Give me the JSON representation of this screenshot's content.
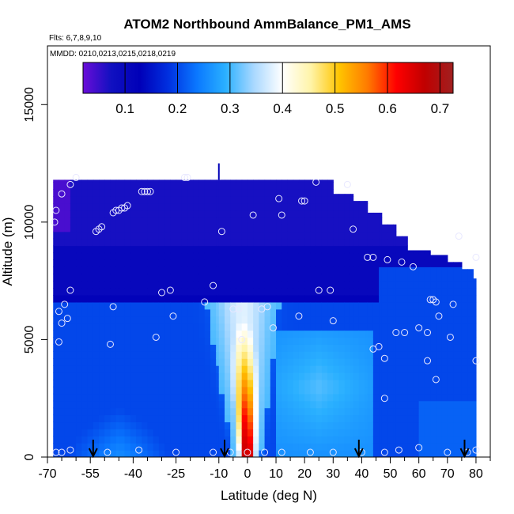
{
  "chart_data": {
    "type": "heatmap",
    "title": "ATOM2 Northbound AmmBalance_PM1_AMS",
    "subtitle": "Flts: 6,7,8,9,10",
    "annotation": "MMDD: 0210,0213,0215,0218,0219",
    "xlabel": "Latitude (deg N)",
    "ylabel": "Altitude (m)",
    "xlim": [
      -70,
      85
    ],
    "ylim": [
      0,
      17500
    ],
    "x_ticks": [
      -70,
      -55,
      -40,
      -25,
      -10,
      0,
      10,
      20,
      30,
      40,
      50,
      60,
      70,
      80
    ],
    "x_minor_ticks": [
      -65,
      -60,
      -50,
      -45,
      -35,
      -30,
      -20,
      -15,
      -5,
      5,
      15,
      25,
      35,
      45,
      55,
      65,
      75,
      85
    ],
    "y_ticks": [
      0,
      5000,
      10000,
      15000
    ],
    "colorbar": {
      "min": 0.02,
      "max": 0.725,
      "ticks": [
        0.1,
        0.2,
        0.3,
        0.4,
        0.5,
        0.6,
        0.7
      ],
      "colors": [
        "#6a0dd8",
        "#1010c0",
        "#0000b8",
        "#0030e0",
        "#0a78ff",
        "#2ab0ff",
        "#a9d8ff",
        "#ffffff",
        "#fff4a8",
        "#ffc400",
        "#ff7a00",
        "#ff0000",
        "#c00000",
        "#a02020"
      ]
    },
    "field_segments": [
      {
        "x": [
          -68,
          -52
        ],
        "top": 11800
      },
      {
        "x": [
          -52,
          -45
        ],
        "top": 11800
      },
      {
        "x": [
          -45,
          -10
        ],
        "top": 11800
      },
      {
        "x": [
          -10,
          30
        ],
        "top": 11800
      },
      {
        "x": [
          30,
          37
        ],
        "top": 11200
      },
      {
        "x": [
          37,
          42
        ],
        "top": 10900
      },
      {
        "x": [
          42,
          47
        ],
        "top": 10400
      },
      {
        "x": [
          47,
          52
        ],
        "top": 9900
      },
      {
        "x": [
          52,
          56
        ],
        "top": 9400
      },
      {
        "x": [
          56,
          64
        ],
        "top": 8800
      },
      {
        "x": [
          64,
          70
        ],
        "top": 8600
      },
      {
        "x": [
          70,
          75
        ],
        "top": 8300
      },
      {
        "x": [
          75,
          79
        ],
        "top": 8000
      },
      {
        "x": [
          79,
          80
        ],
        "top": 7600
      }
    ],
    "plume": {
      "lat_center": 0,
      "alt_top": 6500,
      "peak_value": 0.72
    },
    "points": [
      [
        -67.5,
        10000
      ],
      [
        -67,
        10500
      ],
      [
        -66,
        6200
      ],
      [
        -65,
        5700
      ],
      [
        -64,
        6500
      ],
      [
        -63,
        5900
      ],
      [
        -62,
        7100
      ],
      [
        -66,
        4900
      ],
      [
        -65,
        11200
      ],
      [
        -62,
        11600
      ],
      [
        -60,
        11900
      ],
      [
        -53,
        9600
      ],
      [
        -52,
        9700
      ],
      [
        -51,
        9800
      ],
      [
        -47,
        10400
      ],
      [
        -46,
        10500
      ],
      [
        -45,
        10500
      ],
      [
        -44,
        10600
      ],
      [
        -43,
        10600
      ],
      [
        -42,
        10700
      ],
      [
        -47,
        6400
      ],
      [
        -48,
        4800
      ],
      [
        -37,
        11300
      ],
      [
        -36,
        11300
      ],
      [
        -35,
        11300
      ],
      [
        -34,
        11300
      ],
      [
        -30,
        7000
      ],
      [
        -32,
        5100
      ],
      [
        -26,
        6000
      ],
      [
        -27,
        7100
      ],
      [
        -22,
        11900
      ],
      [
        -21,
        11900
      ],
      [
        -15,
        6600
      ],
      [
        -12,
        7300
      ],
      [
        -9,
        9600
      ],
      [
        -5,
        6300
      ],
      [
        -3,
        6300
      ],
      [
        -2,
        5000
      ],
      [
        2,
        10300
      ],
      [
        5,
        6300
      ],
      [
        7,
        6400
      ],
      [
        9,
        5500
      ],
      [
        11,
        11000
      ],
      [
        12,
        10300
      ],
      [
        18,
        6000
      ],
      [
        19,
        10900
      ],
      [
        20,
        10900
      ],
      [
        24,
        11700
      ],
      [
        25,
        7100
      ],
      [
        29,
        7100
      ],
      [
        30,
        5800
      ],
      [
        35,
        11600
      ],
      [
        37,
        9700
      ],
      [
        42,
        8500
      ],
      [
        44,
        8500
      ],
      [
        49,
        8400
      ],
      [
        54,
        8300
      ],
      [
        58,
        8100
      ],
      [
        64,
        6700
      ],
      [
        65,
        6700
      ],
      [
        66,
        6600
      ],
      [
        72,
        6500
      ],
      [
        63,
        5300
      ],
      [
        67,
        6000
      ],
      [
        71,
        5100
      ],
      [
        74,
        9400
      ],
      [
        80,
        8500
      ],
      [
        80,
        4100
      ],
      [
        44,
        4600
      ],
      [
        46,
        4700
      ],
      [
        48,
        4200
      ],
      [
        52,
        5300
      ],
      [
        55,
        5300
      ],
      [
        60,
        5500
      ],
      [
        63,
        4100
      ],
      [
        66,
        3300
      ],
      [
        48,
        2500
      ],
      [
        -67,
        200
      ],
      [
        -65,
        200
      ],
      [
        -62,
        300
      ],
      [
        -49,
        200
      ],
      [
        -38,
        300
      ],
      [
        -25,
        200
      ],
      [
        -12,
        200
      ],
      [
        -6,
        200
      ],
      [
        0,
        200
      ],
      [
        6,
        200
      ],
      [
        12,
        200
      ],
      [
        22,
        200
      ],
      [
        30,
        200
      ],
      [
        40,
        200
      ],
      [
        48,
        200
      ],
      [
        53,
        300
      ],
      [
        60,
        400
      ],
      [
        70,
        200
      ],
      [
        77,
        200
      ],
      [
        80,
        300
      ]
    ],
    "arrows": [
      -54,
      -8,
      39,
      76
    ]
  }
}
